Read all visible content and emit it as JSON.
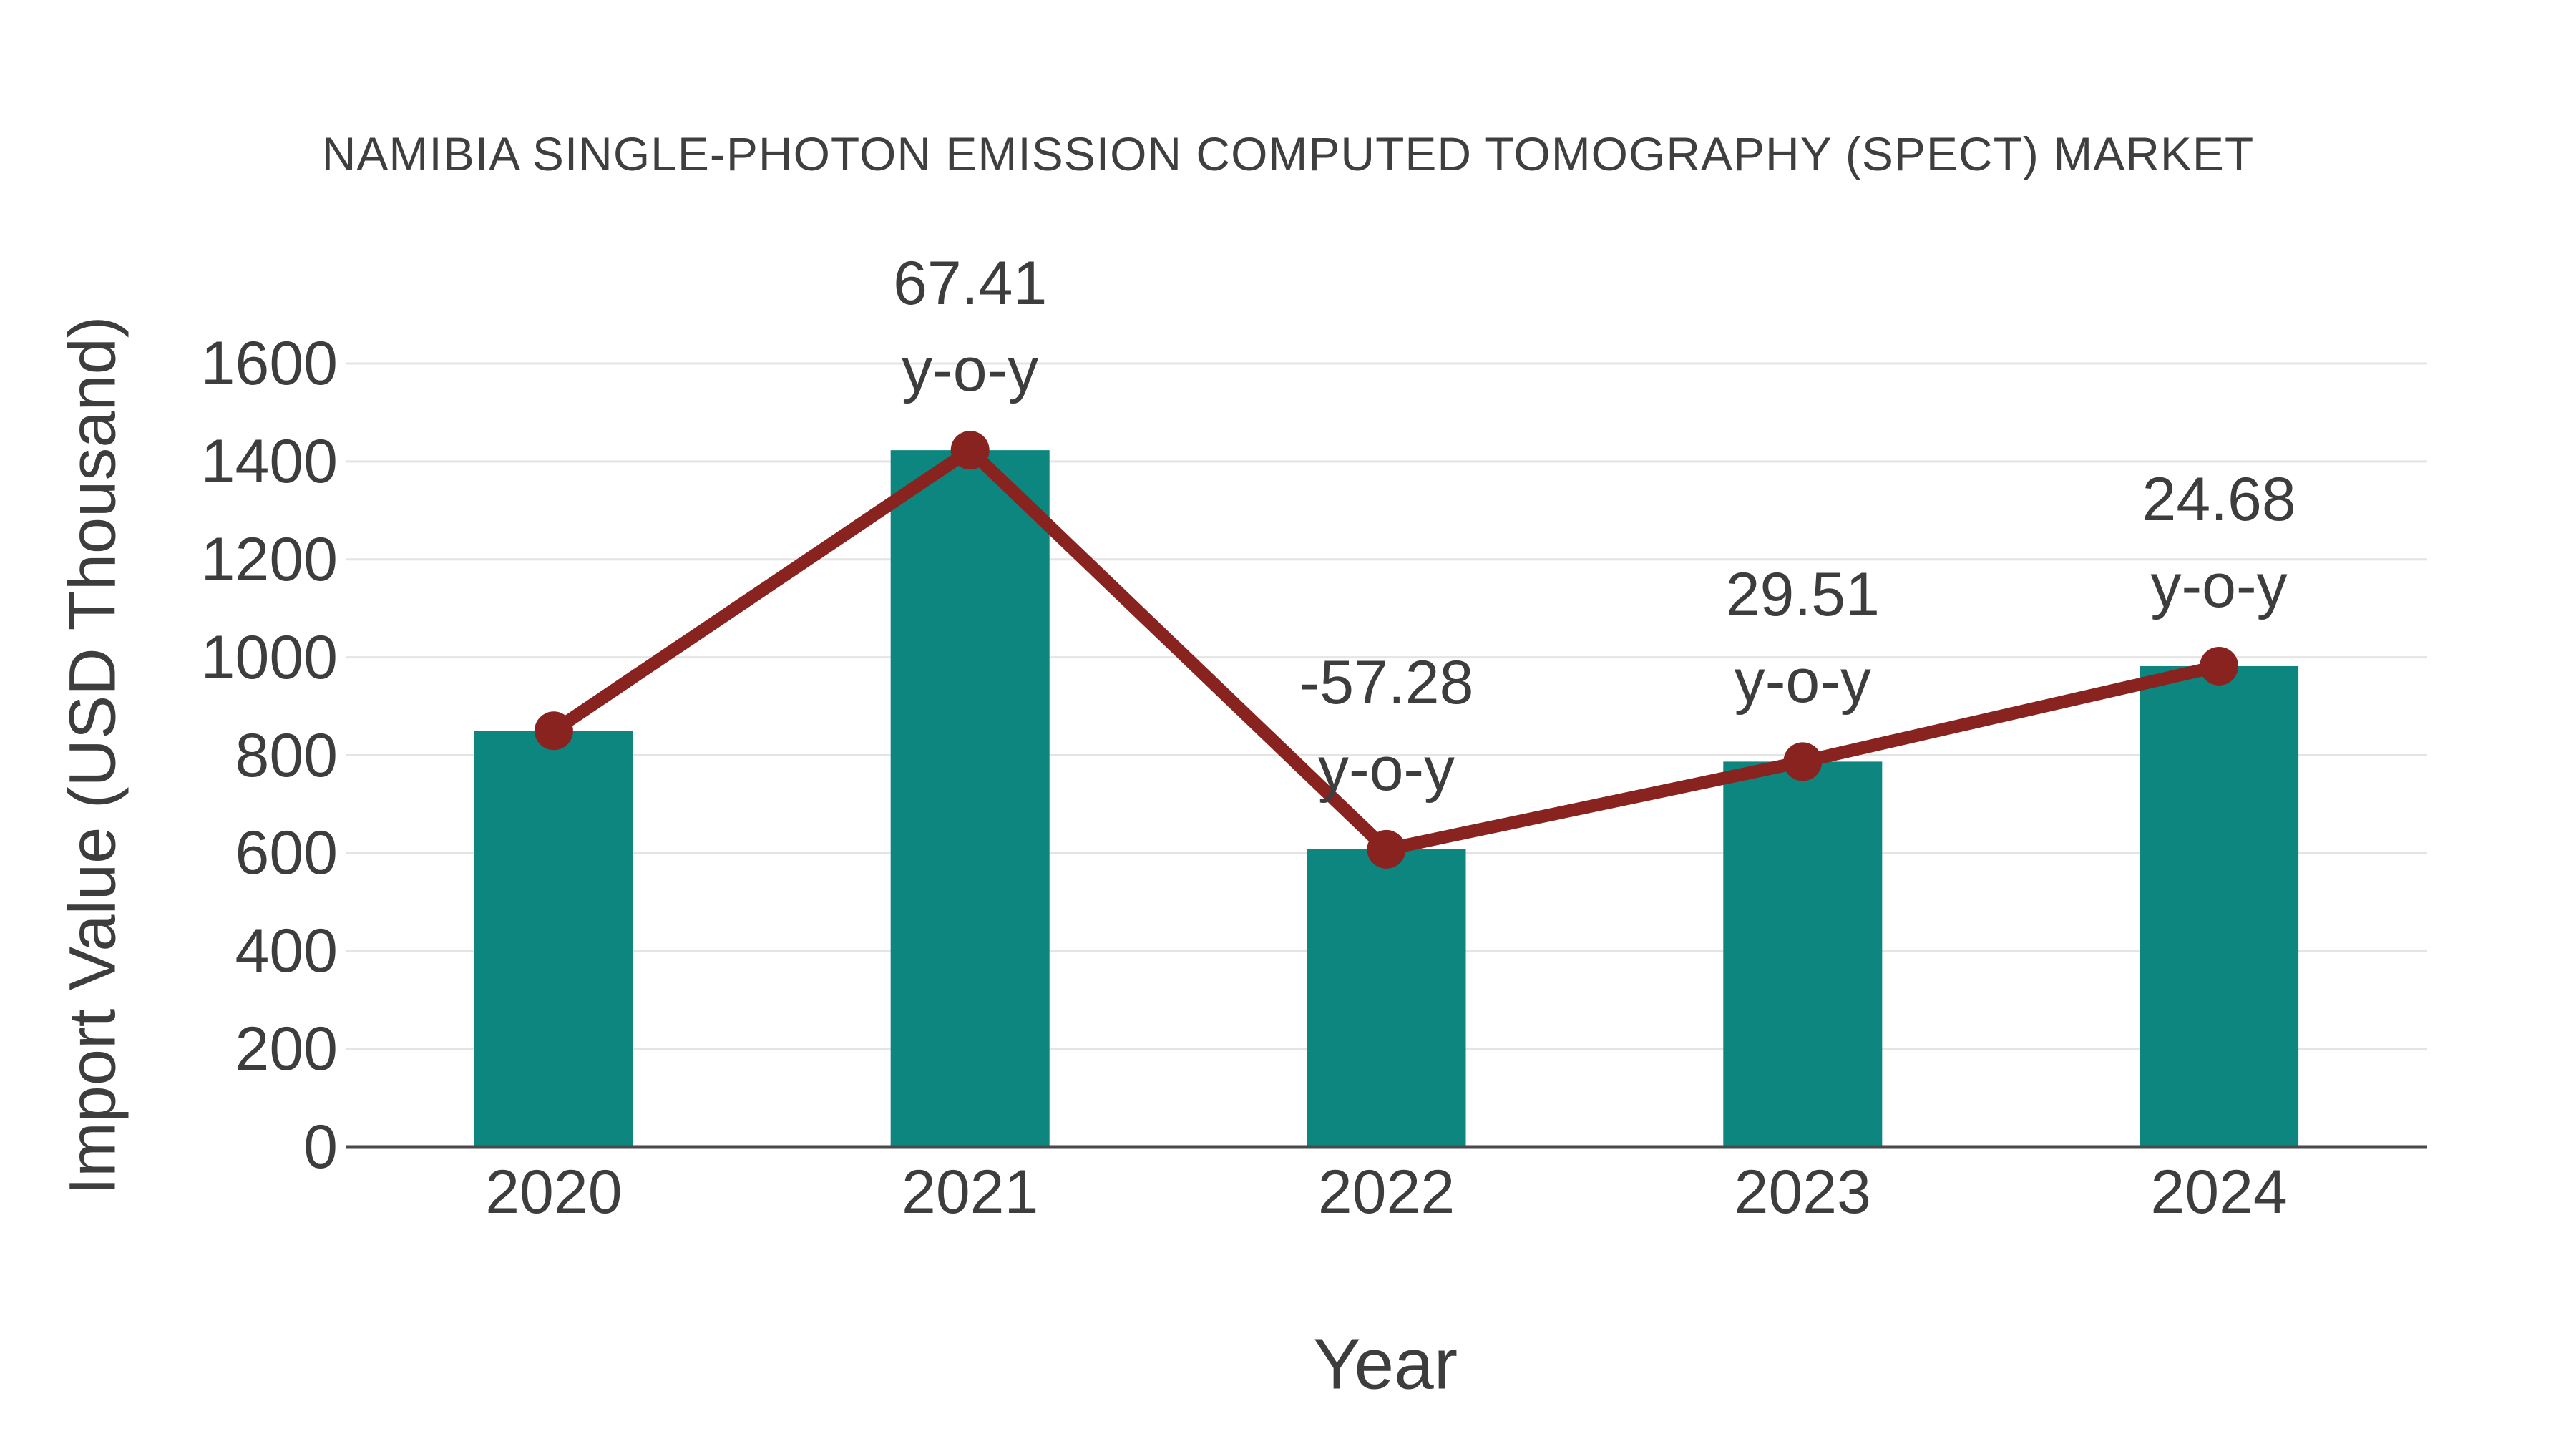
{
  "chart_data": {
    "type": "bar",
    "title": "NAMIBIA SINGLE-PHOTON EMISSION COMPUTED TOMOGRAPHY (SPECT) MARKET",
    "xlabel": "Year",
    "ylabel": "Import Value (USD Thousand)",
    "categories": [
      "2020",
      "2021",
      "2022",
      "2023",
      "2024"
    ],
    "series": [
      {
        "name": "Import Value",
        "type": "bar",
        "color": "#0d8680",
        "values": [
          850,
          1423,
          608,
          787,
          982
        ]
      },
      {
        "name": "y-o-y trend",
        "type": "line",
        "color": "#892320",
        "values": [
          850,
          1423,
          608,
          787,
          982
        ]
      }
    ],
    "annotations": [
      {
        "category": "2021",
        "line1": "67.41",
        "line2": "y-o-y"
      },
      {
        "category": "2022",
        "line1": "-57.28",
        "line2": "y-o-y"
      },
      {
        "category": "2023",
        "line1": "29.51",
        "line2": "y-o-y"
      },
      {
        "category": "2024",
        "line1": "24.68",
        "line2": "y-o-y"
      }
    ],
    "yticks": [
      0,
      200,
      400,
      600,
      800,
      1000,
      1200,
      1400,
      1600
    ],
    "ylim": [
      0,
      1600
    ],
    "grid": "horizontal",
    "legend": "none",
    "colors": {
      "bar": "#0d8680",
      "line": "#892320",
      "marker": "#892320",
      "text": "#3d3d3d",
      "grid": "#e4e4e4",
      "axis": "#4a4a4a",
      "background": "#ffffff"
    }
  }
}
